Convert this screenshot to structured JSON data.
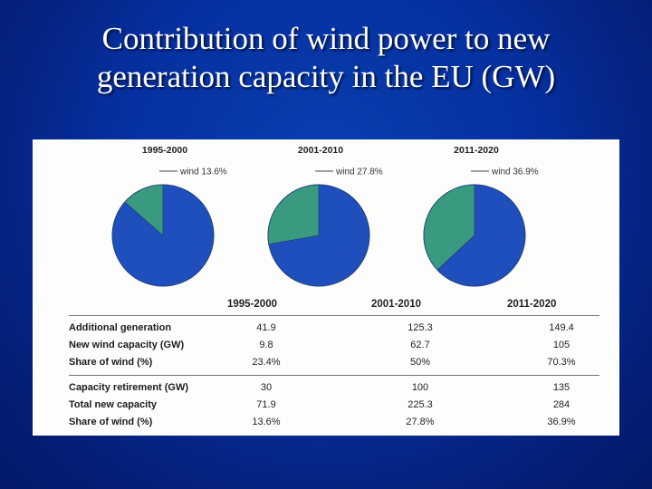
{
  "title": {
    "line1": "Contribution of wind power to new",
    "line2": "generation capacity in the EU (GW)"
  },
  "colors": {
    "other": "#1f4fbd",
    "wind": "#3a9a80",
    "edge": "#20407a"
  },
  "chart_data": [
    {
      "type": "pie",
      "title": "1995-2000",
      "slices": [
        {
          "name": "wind",
          "value": 13.6,
          "label": "wind 13.6%"
        },
        {
          "name": "other",
          "value": 86.4
        }
      ]
    },
    {
      "type": "pie",
      "title": "2001-2010",
      "slices": [
        {
          "name": "wind",
          "value": 27.8,
          "label": "wind 27.8%"
        },
        {
          "name": "other",
          "value": 72.2
        }
      ]
    },
    {
      "type": "pie",
      "title": "2011-2020",
      "slices": [
        {
          "name": "wind",
          "value": 36.9,
          "label": "wind 36.9%"
        },
        {
          "name": "other",
          "value": 63.1
        }
      ]
    },
    {
      "type": "table",
      "columns": [
        "",
        "1995-2000",
        "2001-2010",
        "2011-2020"
      ],
      "rows": [
        {
          "label": "Additional generation",
          "values": [
            "41.9",
            "125.3",
            "149.4"
          ]
        },
        {
          "label": "New wind capacity (GW)",
          "values": [
            "9.8",
            "62.7",
            "105"
          ]
        },
        {
          "label": "Share of wind (%)",
          "values": [
            "23.4%",
            "50%",
            "70.3%"
          ]
        },
        {
          "label": "Capacity retirement (GW)",
          "values": [
            "30",
            "100",
            "135"
          ]
        },
        {
          "label": "Total new capacity",
          "values": [
            "71.9",
            "225.3",
            "284"
          ]
        },
        {
          "label": "Share of wind (%)",
          "values": [
            "13.6%",
            "27.8%",
            "36.9%"
          ]
        }
      ]
    }
  ]
}
